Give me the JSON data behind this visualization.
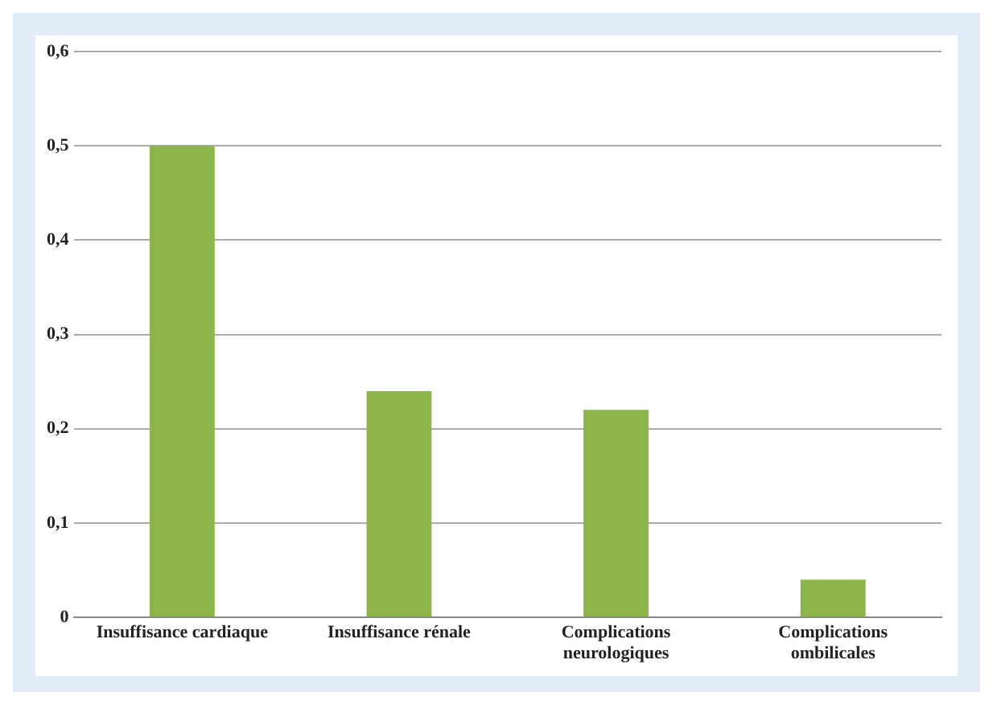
{
  "chart_data": {
    "type": "bar",
    "categories": [
      "Insuffisance cardiaque",
      "Insuffisance rénale",
      "Complications neurologiques",
      "Complications ombilicales"
    ],
    "values": [
      0.5,
      0.24,
      0.22,
      0.04
    ],
    "color": "#8db54a",
    "ylim": [
      0,
      0.6
    ],
    "yticks": [
      0,
      {
        "value": 0.1,
        "label": "0,1"
      },
      {
        "value": 0.2,
        "label": "0,2"
      },
      {
        "value": 0.3,
        "label": "0,3"
      },
      {
        "value": 0.4,
        "label": "0,4"
      },
      {
        "value": 0.5,
        "label": "0,5"
      },
      {
        "value": 0.6,
        "label": "0,6"
      }
    ],
    "grid": "y"
  }
}
